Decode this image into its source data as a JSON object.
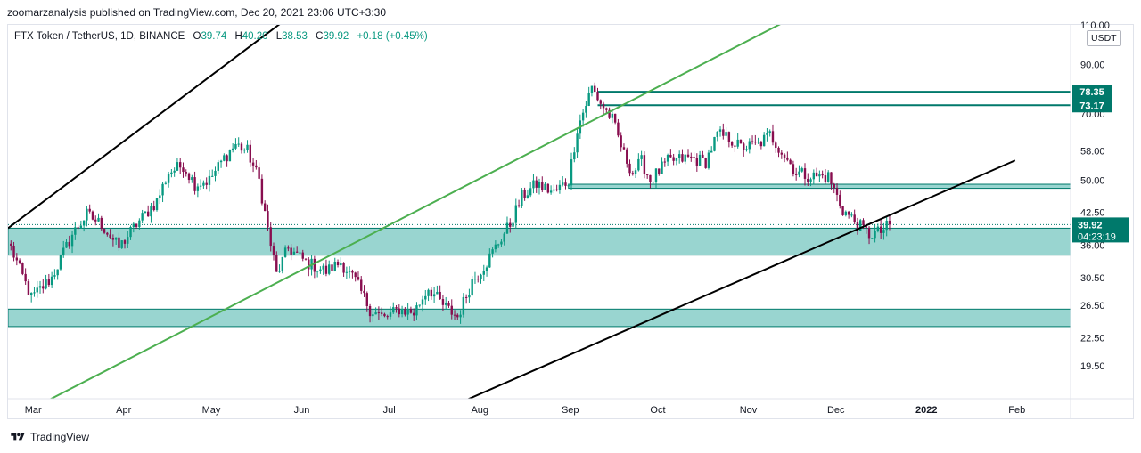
{
  "header": {
    "published_by": "zoomarzanalysis published on TradingView.com, Dec 20, 2021 23:06 UTC+3:30",
    "symbol": "FTX Token / TetherUS, 1D, BINANCE",
    "open_label": "O",
    "open": "39.74",
    "high_label": "H",
    "high": "40.20",
    "low_label": "L",
    "low": "38.53",
    "close_label": "C",
    "close": "39.92",
    "change": "+0.18 (+0.45%)",
    "currency": "USDT"
  },
  "footer": {
    "brand": "TradingView"
  },
  "colors": {
    "up": "#089981",
    "down": "#880e4f",
    "zone_fill": "#80cbc4",
    "zone_line": "#00796b",
    "green_channel": "#4caf50",
    "black_channel": "#000000",
    "label_bg": "#00796b"
  },
  "chart_data": {
    "type": "candlestick",
    "title": "FTX Token / TetherUS, 1D, BINANCE",
    "scale": "log",
    "ylim": [
      16.5,
      110
    ],
    "y_ticks": [
      "110.00",
      "90.00",
      "70.00",
      "58.00",
      "50.00",
      "42.50",
      "36.00",
      "30.50",
      "26.50",
      "22.50",
      "19.50"
    ],
    "x_ticks": [
      {
        "label": "Mar",
        "date": "2021-03-01"
      },
      {
        "label": "Apr",
        "date": "2021-04-01"
      },
      {
        "label": "May",
        "date": "2021-05-01"
      },
      {
        "label": "Jun",
        "date": "2021-06-01"
      },
      {
        "label": "Jul",
        "date": "2021-07-01"
      },
      {
        "label": "Aug",
        "date": "2021-08-01"
      },
      {
        "label": "Sep",
        "date": "2021-09-01"
      },
      {
        "label": "Oct",
        "date": "2021-10-01"
      },
      {
        "label": "Nov",
        "date": "2021-11-01"
      },
      {
        "label": "Dec",
        "date": "2021-12-01"
      },
      {
        "label": "2022",
        "date": "2022-01-01",
        "bold": true
      },
      {
        "label": "Feb",
        "date": "2022-02-01"
      }
    ],
    "last_price": {
      "value": 39.92,
      "label": "39.92",
      "countdown": "04:23:19"
    },
    "horizontal_levels": [
      {
        "value": 78.35,
        "label": "78.35",
        "from": "2021-09-11"
      },
      {
        "value": 73.17,
        "label": "73.17",
        "from": "2021-09-11"
      }
    ],
    "zones": [
      {
        "top": 49.0,
        "bottom": 48.0,
        "from": "2021-09-01"
      },
      {
        "top": 39.2,
        "bottom": 34.2,
        "from": "2021-02-21"
      },
      {
        "top": 26.0,
        "bottom": 23.8,
        "from": "2021-02-21"
      }
    ],
    "trend_lines": [
      {
        "color": "black",
        "from": {
          "date": "2021-02-21",
          "value": 39.2
        },
        "to": {
          "date": "2021-05-31",
          "value": 118
        }
      },
      {
        "color": "green",
        "from": {
          "date": "2021-03-07",
          "value": 16.4
        },
        "to": {
          "date": "2021-11-19",
          "value": 116
        }
      },
      {
        "color": "black",
        "from": {
          "date": "2021-07-28",
          "value": 16.4
        },
        "to": {
          "date": "2022-02-01",
          "value": 55.3
        }
      }
    ],
    "price_path": [
      {
        "date": "2021-02-22",
        "value": 35.5
      },
      {
        "date": "2021-03-01",
        "value": 27.5
      },
      {
        "date": "2021-03-08",
        "value": 30.5
      },
      {
        "date": "2021-03-15",
        "value": 38
      },
      {
        "date": "2021-03-20",
        "value": 42
      },
      {
        "date": "2021-03-25",
        "value": 40
      },
      {
        "date": "2021-03-31",
        "value": 35.5
      },
      {
        "date": "2021-04-06",
        "value": 40
      },
      {
        "date": "2021-04-13",
        "value": 45
      },
      {
        "date": "2021-04-17",
        "value": 52
      },
      {
        "date": "2021-04-22",
        "value": 54
      },
      {
        "date": "2021-04-26",
        "value": 49
      },
      {
        "date": "2021-05-01",
        "value": 50
      },
      {
        "date": "2021-05-06",
        "value": 56
      },
      {
        "date": "2021-05-10",
        "value": 60
      },
      {
        "date": "2021-05-14",
        "value": 58
      },
      {
        "date": "2021-05-18",
        "value": 50
      },
      {
        "date": "2021-05-21",
        "value": 39
      },
      {
        "date": "2021-05-24",
        "value": 31
      },
      {
        "date": "2021-05-28",
        "value": 35.5
      },
      {
        "date": "2021-06-03",
        "value": 33
      },
      {
        "date": "2021-06-10",
        "value": 31.5
      },
      {
        "date": "2021-06-15",
        "value": 33
      },
      {
        "date": "2021-06-20",
        "value": 30
      },
      {
        "date": "2021-06-25",
        "value": 26
      },
      {
        "date": "2021-06-30",
        "value": 24.8
      },
      {
        "date": "2021-07-05",
        "value": 26
      },
      {
        "date": "2021-07-10",
        "value": 25.5
      },
      {
        "date": "2021-07-15",
        "value": 29
      },
      {
        "date": "2021-07-20",
        "value": 26.5
      },
      {
        "date": "2021-07-25",
        "value": 25
      },
      {
        "date": "2021-07-30",
        "value": 30
      },
      {
        "date": "2021-08-04",
        "value": 33
      },
      {
        "date": "2021-08-08",
        "value": 36.5
      },
      {
        "date": "2021-08-12",
        "value": 40
      },
      {
        "date": "2021-08-16",
        "value": 46
      },
      {
        "date": "2021-08-21",
        "value": 49
      },
      {
        "date": "2021-08-27",
        "value": 47
      },
      {
        "date": "2021-09-01",
        "value": 50
      },
      {
        "date": "2021-09-04",
        "value": 65
      },
      {
        "date": "2021-09-09",
        "value": 80
      },
      {
        "date": "2021-09-12",
        "value": 74
      },
      {
        "date": "2021-09-16",
        "value": 68
      },
      {
        "date": "2021-09-20",
        "value": 57
      },
      {
        "date": "2021-09-23",
        "value": 52
      },
      {
        "date": "2021-09-26",
        "value": 55
      },
      {
        "date": "2021-09-29",
        "value": 50
      },
      {
        "date": "2021-10-05",
        "value": 55
      },
      {
        "date": "2021-10-12",
        "value": 56
      },
      {
        "date": "2021-10-18",
        "value": 55
      },
      {
        "date": "2021-10-22",
        "value": 63
      },
      {
        "date": "2021-10-26",
        "value": 62
      },
      {
        "date": "2021-10-30",
        "value": 59
      },
      {
        "date": "2021-11-05",
        "value": 60
      },
      {
        "date": "2021-11-09",
        "value": 63
      },
      {
        "date": "2021-11-13",
        "value": 58
      },
      {
        "date": "2021-11-18",
        "value": 52
      },
      {
        "date": "2021-11-24",
        "value": 51
      },
      {
        "date": "2021-11-29",
        "value": 51
      },
      {
        "date": "2021-12-04",
        "value": 43
      },
      {
        "date": "2021-12-09",
        "value": 40
      },
      {
        "date": "2021-12-13",
        "value": 38
      },
      {
        "date": "2021-12-17",
        "value": 38.5
      },
      {
        "date": "2021-12-20",
        "value": 39.9
      }
    ]
  }
}
